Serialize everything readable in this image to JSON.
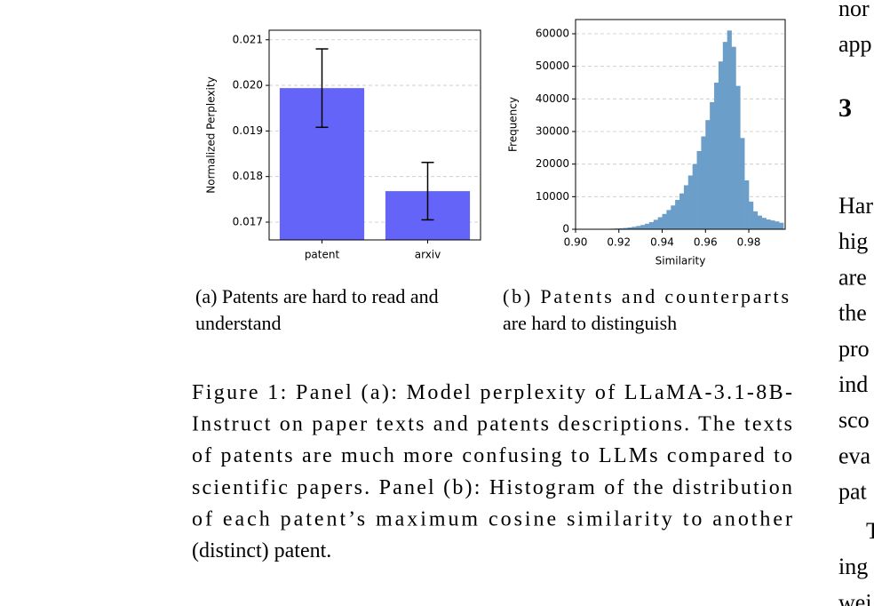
{
  "chart_data": [
    {
      "type": "bar",
      "ylabel": "Normalized Perplexity",
      "categories": [
        "patent",
        "arxiv"
      ],
      "values": [
        0.01994,
        0.01768
      ],
      "errors": [
        0.00086,
        0.00063
      ],
      "color": "#6464f8",
      "ylim": [
        0.01661,
        0.02121
      ],
      "yticks": [
        0.017,
        0.018,
        0.019,
        {
          "value": 0.02,
          "label": "0.020"
        },
        0.021
      ],
      "grid": true
    },
    {
      "type": "histogram",
      "xlabel": "Similarity",
      "ylabel": "Frequency",
      "color": "#6b9ec9",
      "bins": [
        0.9,
        0.902,
        0.904,
        0.906,
        0.908,
        0.91,
        0.912,
        0.914,
        0.916,
        0.918,
        0.92,
        0.922,
        0.924,
        0.926,
        0.928,
        0.93,
        0.932,
        0.934,
        0.936,
        0.938,
        0.94,
        0.942,
        0.944,
        0.946,
        0.948,
        0.95,
        0.952,
        0.954,
        0.956,
        0.958,
        0.96,
        0.962,
        0.964,
        0.966,
        0.968,
        0.97,
        0.972,
        0.974,
        0.976,
        0.978,
        0.98,
        0.982,
        0.984,
        0.986,
        0.988,
        0.99,
        0.992,
        0.994,
        0.996
      ],
      "values": [
        0,
        0,
        0,
        0,
        0,
        50,
        80,
        120,
        170,
        230,
        300,
        400,
        550,
        750,
        1000,
        1300,
        1700,
        2200,
        2900,
        3700,
        4700,
        5900,
        7300,
        9000,
        11000,
        13500,
        16500,
        20000,
        24000,
        28500,
        33500,
        39000,
        45000,
        51500,
        57500,
        61000,
        56000,
        44000,
        28000,
        15000,
        8500,
        5500,
        4200,
        3500,
        3000,
        2700,
        2400,
        2000
      ],
      "xlim": [
        0.9,
        0.9968
      ],
      "xticks": [
        {
          "value": 0.9,
          "label": "0.90"
        },
        0.92,
        0.94,
        0.96,
        0.98
      ],
      "ylim": [
        0,
        64364
      ],
      "yticks": [
        0,
        10000,
        20000,
        30000,
        40000,
        50000,
        60000
      ],
      "grid": true
    }
  ],
  "subcaptions": [
    [
      "(a) Patents are hard to read and",
      "understand"
    ],
    [
      "(b)  Patents  and  counterparts",
      "are hard to distinguish"
    ]
  ],
  "caption": [
    "Figure 1: Panel (a): Model perplexity of LLaMA-3.1-8B-",
    "Instruct on paper texts and patents descriptions. The texts",
    "of patents are much more confusing to LLMs compared to",
    "scientific papers. Panel (b): Histogram of the distribution",
    "of each patent’s maximum cosine similarity to another",
    "(distinct) patent."
  ],
  "right_column": {
    "top": [
      "nor",
      "app"
    ],
    "heading": "3",
    "lines": [
      "Har",
      "hig",
      "are",
      "the",
      "pro",
      "ind",
      "sco",
      "eva",
      "pat"
    ],
    "lines2": [
      "T",
      "ing",
      "wei"
    ]
  }
}
